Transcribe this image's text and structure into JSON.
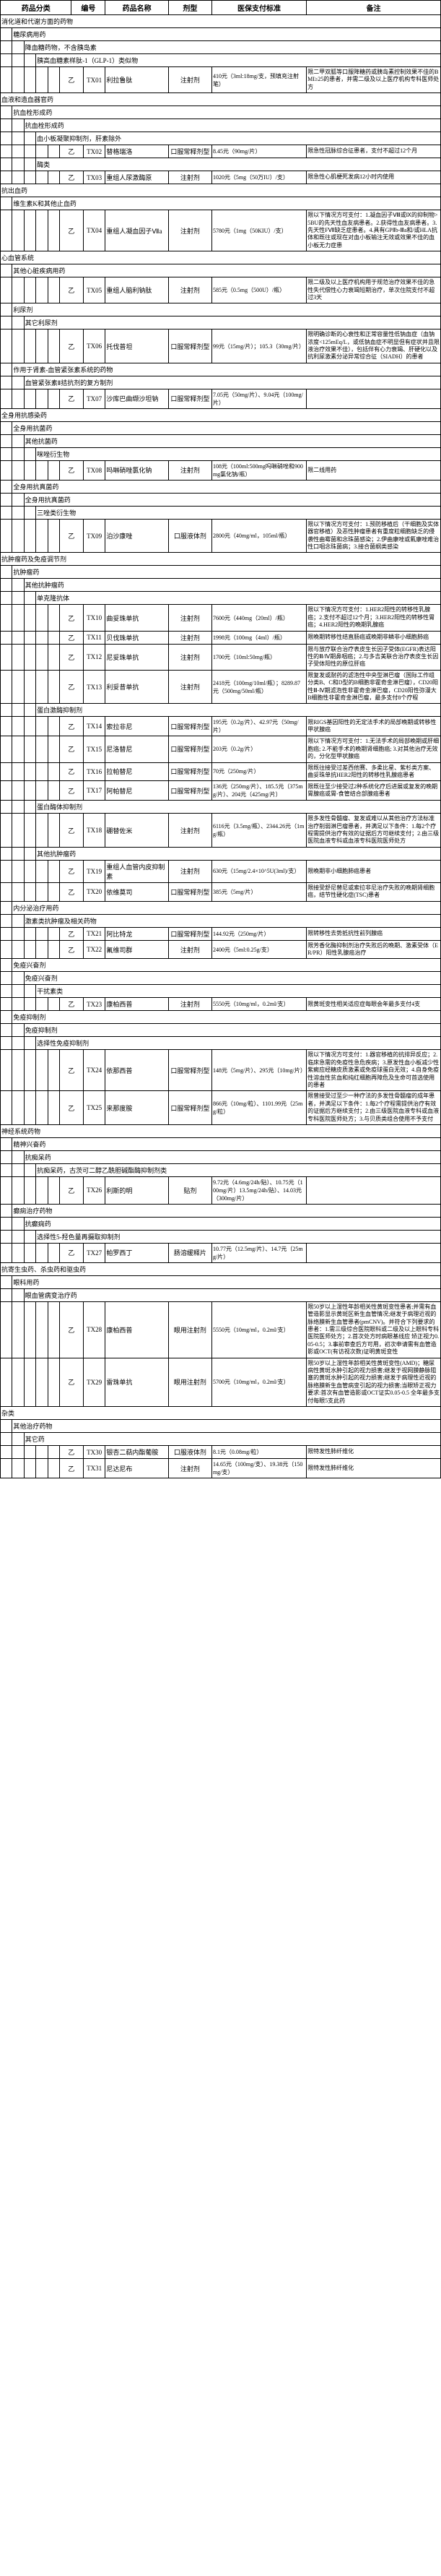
{
  "headers": [
    "药品分类",
    "编号",
    "药品名称",
    "剂型",
    "医保支付标准",
    "备注"
  ],
  "rows": [
    {
      "type": "cat",
      "span": 12,
      "text": "消化道和代谢方面的药物"
    },
    {
      "type": "cat",
      "indent": 1,
      "span": 11,
      "text": "糖尿病用药"
    },
    {
      "type": "cat",
      "indent": 2,
      "span": 10,
      "text": "降血糖药物，不含胰岛素"
    },
    {
      "type": "cat",
      "indent": 3,
      "span": 9,
      "text": "胰高血糖素样肽-1（GLP-1）类似物"
    },
    {
      "type": "drug",
      "seq": "乙",
      "code": "TX01",
      "name": "利拉鲁肽",
      "form": "注射剂",
      "std": "410元（3ml:18mg/支，预填充注射笔）",
      "note": "限二甲双胍等口服降糖药或胰岛素控制效果不佳的BMI≥25的患者，并需二级及以上医疗机构专科医师处方"
    },
    {
      "type": "cat",
      "span": 12,
      "text": "血液和造血器官药"
    },
    {
      "type": "cat",
      "indent": 1,
      "span": 11,
      "text": "抗血栓形成药"
    },
    {
      "type": "cat",
      "indent": 2,
      "span": 10,
      "text": "抗血栓形成药"
    },
    {
      "type": "cat",
      "indent": 3,
      "span": 9,
      "text": "血小板凝聚抑制剂，肝素除外"
    },
    {
      "type": "drug",
      "seq": "乙",
      "code": "TX02",
      "name": "替格瑞洛",
      "form": "口服常释剂型",
      "std": "8.45元（90mg/片）",
      "note": "限急性冠脉综合征患者，支付不超过12个月"
    },
    {
      "type": "cat",
      "indent": 3,
      "span": 9,
      "text": "酶类"
    },
    {
      "type": "drug",
      "seq": "乙",
      "code": "TX03",
      "name": "重组人尿激酶原",
      "form": "注射剂",
      "std": "1020元（5mg（50万IU）/支）",
      "note": "限急性心肌梗死发病12小时内使用"
    },
    {
      "type": "cat",
      "span": 12,
      "text": "抗出血药"
    },
    {
      "type": "cat",
      "indent": 1,
      "span": 11,
      "text": "维生素K和其他止血药"
    },
    {
      "type": "drug",
      "seq": "乙",
      "code": "TX04",
      "name": "重组人凝血因子Ⅶa",
      "form": "注射剂",
      "std": "5780元（1mg（50KIU）/支）",
      "note": "限以下情况方可支付：1.凝血因子Ⅷ或Ⅸ的抑制物>5BU的先天性血友病患者。2.获得性血友病患者。3.先天性FⅦ缺乏症患者。4.具有GPⅡb-Ⅲa和/或HLA抗体和既往或现在对血小板输注无效或效果不佳的血小板无力症患"
    },
    {
      "type": "cat",
      "span": 12,
      "text": "心血管系统"
    },
    {
      "type": "cat",
      "indent": 1,
      "span": 11,
      "text": "其他心脏疾病用药"
    },
    {
      "type": "drug",
      "seq": "乙",
      "code": "TX05",
      "name": "重组人脑利钠肽",
      "form": "注射剂",
      "std": "585元（0.5mg（500U）/瓶）",
      "note": "限二级及以上医疗机构用于规范治疗效果不佳的急性失代偿性心力衰竭短期治疗，单次住院支付不超过3天"
    },
    {
      "type": "cat",
      "indent": 1,
      "span": 11,
      "text": "利尿剂"
    },
    {
      "type": "cat",
      "indent": 2,
      "span": 10,
      "text": "其它利尿剂"
    },
    {
      "type": "drug",
      "seq": "乙",
      "code": "TX06",
      "name": "托伐普坦",
      "form": "口服常释剂型",
      "std": "99元（15mg/片）；105.3（30mg/片）",
      "note": "限明确诊断的心衰性和正常容量性低钠血症（血钠浓度<125mEq/L，或低钠血症不明显但有症状并且限液治疗效果不佳），包括伴有心力衰竭、肝硬化以及抗利尿激素分泌异常综合征（SIADH）的患者"
    },
    {
      "type": "cat",
      "indent": 1,
      "span": 11,
      "text": "作用于肾素-血管紧张素系统的药物"
    },
    {
      "type": "cat",
      "indent": 2,
      "span": 10,
      "text": "血管紧张素Ⅱ拮抗剂的复方制剂"
    },
    {
      "type": "drug",
      "seq": "乙",
      "code": "TX07",
      "name": "沙库巴曲缬沙坦钠",
      "form": "口服常释剂型",
      "std": "7.05元（50mg/片）、9.04元（100mg/片）",
      "note": ""
    },
    {
      "type": "cat",
      "span": 12,
      "text": "全身用抗感染药"
    },
    {
      "type": "cat",
      "indent": 1,
      "span": 11,
      "text": "全身用抗菌药"
    },
    {
      "type": "cat",
      "indent": 2,
      "span": 10,
      "text": "其他抗菌药"
    },
    {
      "type": "cat",
      "indent": 3,
      "span": 9,
      "text": "咪唑衍生物"
    },
    {
      "type": "drug",
      "seq": "乙",
      "code": "TX08",
      "name": "吗啉硝唑氯化钠",
      "form": "注射剂",
      "std": "108元（100ml:500mg吗啉硝唑和900mg氯化钠/瓶）",
      "note": "限二线用药"
    },
    {
      "type": "cat",
      "indent": 1,
      "span": 11,
      "text": "全身用抗真菌药"
    },
    {
      "type": "cat",
      "indent": 2,
      "span": 10,
      "text": "全身用抗真菌药"
    },
    {
      "type": "cat",
      "indent": 3,
      "span": 9,
      "text": "三唑类衍生物"
    },
    {
      "type": "drug",
      "seq": "乙",
      "code": "TX09",
      "name": "泊沙康唑",
      "form": "口服液体剂",
      "std": "2800元（40mg/ml，105ml/瓶）",
      "note": "限以下情况方可支付：1.预防移植后（干细胞及实体器官移植）及恶性肿瘤患者有重度粒细胞缺乏的侵袭性曲霉菌和念珠菌感染；2.伊曲康唑或氟康唑难治性口咽念珠菌病；3.接合菌纲类感染"
    },
    {
      "type": "cat",
      "span": 12,
      "text": "抗肿瘤药及免疫调节剂"
    },
    {
      "type": "cat",
      "indent": 1,
      "span": 11,
      "text": "抗肿瘤药"
    },
    {
      "type": "cat",
      "indent": 2,
      "span": 10,
      "text": "其他抗肿瘤药"
    },
    {
      "type": "cat",
      "indent": 3,
      "span": 9,
      "text": "单克隆抗体"
    },
    {
      "type": "drug",
      "seq": "乙",
      "code": "TX10",
      "name": "曲妥珠单抗",
      "form": "注射剂",
      "std": "7600元（440mg（20ml）/瓶）",
      "note": "限以下情况方可支付：1.HER2阳性的转移性乳腺癌；2.支付不超过12个月；3.HER2阳性的转移性胃癌；4.HER2阳性的晚期乳腺癌"
    },
    {
      "type": "drug",
      "seq": "乙",
      "code": "TX11",
      "name": "贝伐珠单抗",
      "form": "注射剂",
      "std": "1998元（100mg（4ml）/瓶）",
      "note": "限晚期转移性结直肠癌或晚期非鳞非小细胞肺癌"
    },
    {
      "type": "drug",
      "seq": "乙",
      "code": "TX12",
      "name": "尼妥珠单抗",
      "form": "注射剂",
      "std": "1700元（10ml:50mg/瓶）",
      "note": "限与放疗联合治疗表皮生长因子受体(EGFR)表达阳性的Ⅲ/Ⅳ期鼻咽癌；2.与多吉美联合治疗表皮生长因子受体阳性的原位肝癌"
    },
    {
      "type": "drug",
      "seq": "乙",
      "code": "TX13",
      "name": "利妥昔单抗",
      "form": "注射剂",
      "std": "2418元（100mg/10ml/瓶）；8289.87元（500mg/50ml/瓶）",
      "note": "限复发或耐药的滤泡性中央型淋巴瘤（国际工作组分类B、C和D型的B细胞非霍奇金淋巴瘤），CD20阳性Ⅲ-Ⅳ期滤泡性非霍奇金淋巴瘤，CD20阳性弥漫大B细胞性非霍奇金淋巴瘤，最多支付8个疗程"
    },
    {
      "type": "cat",
      "indent": 3,
      "span": 9,
      "text": "蛋白激酶抑制剂"
    },
    {
      "type": "drug",
      "seq": "乙",
      "code": "TX14",
      "name": "索拉非尼",
      "form": "口服常释剂型",
      "std": "195元（0.2g/片）、42.97元（50mg/片）",
      "note": "限RIGS基因阳性的无定法手术的局部晚期或转移性甲状腺癌"
    },
    {
      "type": "drug",
      "seq": "乙",
      "code": "TX15",
      "name": "尼洛替尼",
      "form": "口服常释剂型",
      "std": "203元（0.2g/片）",
      "note": "限以下情况方可支付：1.无法手术的局部晚期或肝细胞癌; 2.不能手术的晚期肾细胞癌; 3.对其他治疗无效的，分化型甲状腺癌"
    },
    {
      "type": "drug",
      "seq": "乙",
      "code": "TX16",
      "name": "拉帕替尼",
      "form": "口服常释剂型",
      "std": "70元（250mg/片）",
      "note": "限既往接受过差西他赛、多柔比星、紫杉类方案、曲妥珠单抗HER2阳性的转移性乳腺癌患者"
    },
    {
      "type": "drug",
      "seq": "乙",
      "code": "TX17",
      "name": "阿帕替尼",
      "form": "口服常释剂型",
      "std": "136元（250mg/片）、185.5元（375mg/片）、204元（425mg/片）",
      "note": "限既往至少接受过2种系统化疗后进展或复发的晚期胃腺癌或胃-食管结合部腺癌患者"
    },
    {
      "type": "cat",
      "indent": 3,
      "span": 9,
      "text": "蛋白酶体抑制剂"
    },
    {
      "type": "drug",
      "seq": "乙",
      "code": "TX18",
      "name": "硼替佐米",
      "form": "注射剂",
      "std": "6116元（3.5mg/瓶）、2344.26元（1mg/瓶）",
      "note": "限多发性骨髓瘤、复发或难以从其他治疗方法标准治疗削弱淋巴瘤患者，并满足以下条件：1.每2个疗程需提供治疗有效的证据后方可继续支付；2.由三级医院血液专科或血液专科医院医师处方"
    },
    {
      "type": "cat",
      "indent": 3,
      "span": 9,
      "text": "其他抗肿瘤药"
    },
    {
      "type": "drug",
      "seq": "乙",
      "code": "TX19",
      "name": "重组人血管内皮抑制素",
      "form": "注射剂",
      "std": "630元（15mg/2.4×10^5U(3ml)/支）",
      "note": "限晚期非小细胞肺癌患者"
    },
    {
      "type": "drug",
      "seq": "乙",
      "code": "TX20",
      "name": "依维莫司",
      "form": "口服常释剂型",
      "std": "385元（5mg/片）",
      "note": "限接受舒尼替尼或索拉非尼治疗失败的晚期肾细胞癌，结节性硬化症(TSC)患者"
    },
    {
      "type": "cat",
      "indent": 1,
      "span": 11,
      "text": "内分泌治疗用药"
    },
    {
      "type": "cat",
      "indent": 2,
      "span": 10,
      "text": "激素类抗肿瘤及相关药物"
    },
    {
      "type": "drug",
      "seq": "乙",
      "code": "TX21",
      "name": "阿比特龙",
      "form": "口服常释剂型",
      "std": "144.92元（250mg/片）",
      "note": "限转移性去势抵抗性前列腺癌"
    },
    {
      "type": "drug",
      "seq": "乙",
      "code": "TX22",
      "name": "氟维司群",
      "form": "注射剂",
      "std": "2400元（5ml:0.25g/支）",
      "note": "限芳香化酶抑制剂治疗失败后的晚期、激素受体（ER/PR）阳性乳腺癌治疗"
    },
    {
      "type": "cat",
      "indent": 1,
      "span": 11,
      "text": "免疫兴奋剂"
    },
    {
      "type": "cat",
      "indent": 2,
      "span": 10,
      "text": "免疫兴奋剂"
    },
    {
      "type": "cat",
      "indent": 3,
      "span": 9,
      "text": "干扰素类"
    },
    {
      "type": "drug",
      "seq": "乙",
      "code": "TX23",
      "name": "康柏西普",
      "form": "注射剂",
      "std": "5550元（10mg/ml，0.2ml/支）",
      "note": "限黄斑变性相关适应症每眼会年最多支付4支"
    },
    {
      "type": "cat",
      "indent": 1,
      "span": 11,
      "text": "免疫抑制剂"
    },
    {
      "type": "cat",
      "indent": 2,
      "span": 10,
      "text": "免疫抑制剂"
    },
    {
      "type": "cat",
      "indent": 3,
      "span": 9,
      "text": "选择性免疫抑制剂"
    },
    {
      "type": "drug",
      "seq": "乙",
      "code": "TX24",
      "name": "依那西普",
      "form": "口服常释剂型",
      "std": "148元（5mg/片）、295元（10mg/片）",
      "note": "限以下情况方可支付：1.器官移植的抗排异反应；2.临床急需的免疫性急危疾病；3.原发性血小板减少性紫癜应经糖皮质激素或免疫球蛋白无效；4.自身免疫性溶血性贫血和纯红细胞再障危及生命可首选使用的患者"
    },
    {
      "type": "drug",
      "seq": "乙",
      "code": "TX25",
      "name": "来那度胺",
      "form": "口服常释剂型",
      "std": "866元（10mg/粒）、1101.99元（25mg/粒）",
      "note": "限曾接受过至少一种疗法的多发性骨髓瘤的成年患者，并满足以下条件：1.每2个疗程需提供治疗有效的证据后方继续支付；2.由三级医院血液专科或血液专科医院医师处方；3.与贝质类组合使用不予支付"
    },
    {
      "type": "cat",
      "span": 12,
      "text": "神经系统药物"
    },
    {
      "type": "cat",
      "indent": 1,
      "span": 11,
      "text": "精神兴奋药"
    },
    {
      "type": "cat",
      "indent": 2,
      "span": 10,
      "text": "抗痴呆药"
    },
    {
      "type": "cat",
      "indent": 3,
      "span": 9,
      "text": "抗痴呆药，古茨可二醇乙酰胆碱酯酶抑制剂类"
    },
    {
      "type": "drug",
      "seq": "乙",
      "code": "TX26",
      "name": "利斯的明",
      "form": "贴剂",
      "std": "9.72元（4.6mg/24h/贴）、10.75元（100mg/片）13.5mg/24h/贴）、14.03元（300mg/片）",
      "note": ""
    },
    {
      "type": "cat",
      "indent": 1,
      "span": 11,
      "text": "癫痫治疗药物"
    },
    {
      "type": "cat",
      "indent": 2,
      "span": 10,
      "text": "抗癫痫药"
    },
    {
      "type": "cat",
      "indent": 3,
      "span": 9,
      "text": "选择性5-羟色量再摄取抑制剂"
    },
    {
      "type": "drug",
      "seq": "乙",
      "code": "TX27",
      "name": "帕罗西丁",
      "form": "肠溶缓释片",
      "std": "10.77元（12.5mg/片）、14.7元（25mg/片）",
      "note": ""
    },
    {
      "type": "cat",
      "span": 12,
      "text": "抗寄生虫药、杀虫药和驱虫药"
    },
    {
      "type": "cat",
      "indent": 1,
      "span": 11,
      "text": "眼科用药"
    },
    {
      "type": "cat",
      "indent": 2,
      "span": 10,
      "text": "眼血管病变治疗药"
    },
    {
      "type": "drug",
      "seq": "乙",
      "code": "TX28",
      "name": "康柏西普",
      "form": "眼用注射剂",
      "std": "5550元（10mg/ml，0.2ml/支）",
      "note": "限50岁以上湿性年龄相关性黄斑变性患者;并需有血管造影显示黄斑区新生血管情况;继发于病理近视的脉络膜新生血管患者(pmCNV)。并符合下列要求的患者：1.需三级综合医院眼科或二级及以上眼科专科医院医师处方；2.首次处方时病眼基线应 矫正视力0.05-0.5；3.事前审查后方可用，初次申请需有血管造影或OCT(有访视次数)证明黄斑变性"
    },
    {
      "type": "drug",
      "seq": "乙",
      "code": "TX29",
      "name": "雷珠单抗",
      "form": "眼用注射剂",
      "std": "5700元（10mg/ml，0.2ml/支）",
      "note": "限50岁以上湿性年龄相关性黄斑变性(AMD)；糖尿病性黄斑水肿引起的视力损害;继发于视网膜静脉阻塞的黄斑水肿引起的视力损害;继发于病理性近视的脉络膜新生血管病变引起的视力损害;当眼矫正视力要求:首次有血管造影或OCT证实0.05-0.5 全年最多支付每眼5支此药"
    },
    {
      "type": "cat",
      "span": 12,
      "text": "杂类"
    },
    {
      "type": "cat",
      "indent": 1,
      "span": 11,
      "text": "其他治疗药物"
    },
    {
      "type": "cat",
      "indent": 2,
      "span": 10,
      "text": "其它药"
    },
    {
      "type": "drug",
      "seq": "乙",
      "code": "TX30",
      "name": "银杏二萜内酯葡胺",
      "form": "口服液体剂",
      "std": "8.1元（0.08mg/粒）",
      "note": "限特发性肺纤维化"
    },
    {
      "type": "drug",
      "seq": "乙",
      "code": "TX31",
      "name": "尼达尼布",
      "form": "注射剂",
      "std": "14.65元（100mg/支）、19.38元（150mg/支）",
      "note": "限特发性肺纤维化"
    }
  ]
}
